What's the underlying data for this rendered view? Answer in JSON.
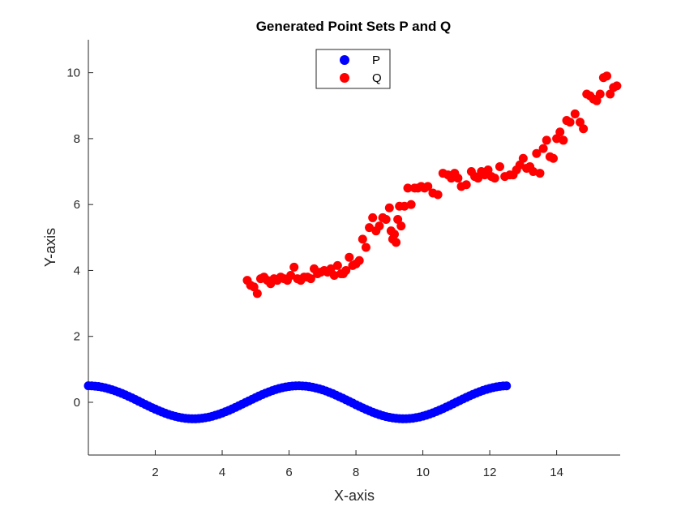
{
  "chart_data": {
    "type": "scatter",
    "title": "Generated Point Sets P and Q",
    "xlabel": "X-axis",
    "ylabel": "Y-axis",
    "xlim": [
      0,
      15.9
    ],
    "ylim": [
      -1.6,
      11
    ],
    "xticks": [
      2,
      4,
      6,
      8,
      10,
      12,
      14
    ],
    "yticks": [
      0,
      2,
      4,
      6,
      8,
      10
    ],
    "grid": false,
    "legend_position": "top-center",
    "series": [
      {
        "name": "P",
        "color": "#0000ff",
        "description": "y = 0.5*cos(x), x from 0 to 4*pi",
        "x": [
          0.0,
          0.1,
          0.2,
          0.3,
          0.4,
          0.5,
          0.6,
          0.7,
          0.8,
          0.9,
          1.0,
          1.1,
          1.2,
          1.3,
          1.4,
          1.5,
          1.6,
          1.7,
          1.8,
          1.9,
          2.0,
          2.1,
          2.2,
          2.3,
          2.4,
          2.5,
          2.6,
          2.7,
          2.8,
          2.9,
          3.0,
          3.1,
          3.2,
          3.3,
          3.4,
          3.5,
          3.6,
          3.7,
          3.8,
          3.9,
          4.0,
          4.1,
          4.2,
          4.3,
          4.4,
          4.5,
          4.6,
          4.7,
          4.8,
          4.9,
          5.0,
          5.1,
          5.2,
          5.3,
          5.4,
          5.5,
          5.6,
          5.7,
          5.8,
          5.9,
          6.0,
          6.1,
          6.2,
          6.3,
          6.4,
          6.5,
          6.6,
          6.7,
          6.8,
          6.9,
          7.0,
          7.1,
          7.2,
          7.3,
          7.4,
          7.5,
          7.6,
          7.7,
          7.8,
          7.9,
          8.0,
          8.1,
          8.2,
          8.3,
          8.4,
          8.5,
          8.6,
          8.7,
          8.8,
          8.9,
          9.0,
          9.1,
          9.2,
          9.3,
          9.4,
          9.5,
          9.6,
          9.7,
          9.8,
          9.9,
          10.0,
          10.1,
          10.2,
          10.3,
          10.4,
          10.5,
          10.6,
          10.7,
          10.8,
          10.9,
          11.0,
          11.1,
          11.2,
          11.3,
          11.4,
          11.5,
          11.6,
          11.7,
          11.8,
          11.9,
          12.0,
          12.1,
          12.2,
          12.3,
          12.4,
          12.5
        ],
        "y": [
          0.5,
          0.498,
          0.49,
          0.478,
          0.461,
          0.439,
          0.413,
          0.382,
          0.348,
          0.311,
          0.27,
          0.227,
          0.181,
          0.134,
          0.085,
          0.035,
          -0.015,
          -0.064,
          -0.114,
          -0.162,
          -0.208,
          -0.252,
          -0.294,
          -0.333,
          -0.369,
          -0.401,
          -0.428,
          -0.452,
          -0.471,
          -0.485,
          -0.495,
          -0.5,
          -0.5,
          -0.494,
          -0.484,
          -0.468,
          -0.448,
          -0.424,
          -0.395,
          -0.363,
          -0.327,
          -0.287,
          -0.245,
          -0.2,
          -0.153,
          -0.105,
          -0.056,
          -0.006,
          0.044,
          0.093,
          0.142,
          0.189,
          0.234,
          0.277,
          0.317,
          0.354,
          0.388,
          0.417,
          0.443,
          0.464,
          0.48,
          0.492,
          0.498,
          0.5,
          0.496,
          0.488,
          0.475,
          0.457,
          0.434,
          0.408,
          0.377,
          0.343,
          0.304,
          0.263,
          0.219,
          0.173,
          0.126,
          0.077,
          0.027,
          -0.023,
          -0.073,
          -0.122,
          -0.17,
          -0.215,
          -0.259,
          -0.301,
          -0.339,
          -0.374,
          -0.405,
          -0.433,
          -0.455,
          -0.474,
          -0.487,
          -0.496,
          -0.5,
          -0.499,
          -0.493,
          -0.483,
          -0.466,
          -0.446,
          -0.42,
          -0.391,
          -0.358,
          -0.32,
          -0.281,
          -0.238,
          -0.193,
          -0.146,
          -0.098,
          -0.048,
          0.002,
          0.052,
          0.101,
          0.149,
          0.196,
          0.241,
          0.283,
          0.323,
          0.36,
          0.392,
          0.422,
          0.447,
          0.467,
          0.483,
          0.494,
          0.499
        ]
      },
      {
        "name": "Q",
        "color": "#ff0000",
        "x": [
          4.75,
          4.85,
          4.95,
          5.05,
          5.15,
          5.25,
          5.35,
          5.45,
          5.55,
          5.65,
          5.75,
          5.85,
          5.95,
          6.05,
          6.15,
          6.25,
          6.35,
          6.45,
          6.55,
          6.65,
          6.75,
          6.85,
          6.95,
          7.05,
          7.15,
          7.25,
          7.35,
          7.45,
          7.55,
          7.62,
          7.7,
          7.8,
          7.9,
          8.0,
          8.1,
          8.2,
          8.3,
          8.4,
          8.5,
          8.6,
          8.7,
          8.8,
          8.9,
          9.0,
          9.05,
          9.1,
          9.15,
          9.2,
          9.25,
          9.3,
          9.35,
          9.45,
          9.55,
          9.65,
          9.75,
          9.85,
          9.95,
          10.05,
          10.15,
          10.3,
          10.45,
          10.6,
          10.75,
          10.85,
          10.95,
          11.05,
          11.15,
          11.3,
          11.45,
          11.55,
          11.65,
          11.75,
          11.85,
          11.95,
          12.05,
          12.15,
          12.3,
          12.45,
          12.6,
          12.7,
          12.8,
          12.9,
          13.0,
          13.1,
          13.2,
          13.3,
          13.4,
          13.5,
          13.6,
          13.7,
          13.8,
          13.9,
          14.0,
          14.1,
          14.2,
          14.3,
          14.4,
          14.55,
          14.7,
          14.8,
          14.9,
          15.0,
          15.1,
          15.2,
          15.3,
          15.4,
          15.5,
          15.6,
          15.7,
          15.8
        ],
        "y": [
          3.7,
          3.55,
          3.5,
          3.3,
          3.75,
          3.8,
          3.7,
          3.6,
          3.75,
          3.7,
          3.8,
          3.75,
          3.7,
          3.85,
          4.1,
          3.75,
          3.7,
          3.8,
          3.8,
          3.75,
          4.05,
          3.9,
          3.95,
          4.0,
          3.95,
          4.05,
          3.85,
          4.15,
          3.9,
          3.9,
          4.0,
          4.4,
          4.15,
          4.2,
          4.3,
          4.95,
          4.7,
          5.3,
          5.6,
          5.2,
          5.35,
          5.6,
          5.55,
          5.9,
          5.2,
          4.95,
          5.1,
          4.85,
          5.55,
          5.95,
          5.35,
          5.95,
          6.5,
          6.0,
          6.5,
          6.5,
          6.55,
          6.5,
          6.55,
          6.35,
          6.3,
          6.95,
          6.9,
          6.8,
          6.95,
          6.8,
          6.55,
          6.6,
          7.0,
          6.85,
          6.8,
          7.0,
          6.9,
          7.05,
          6.85,
          6.8,
          7.15,
          6.85,
          6.9,
          6.9,
          7.05,
          7.2,
          7.4,
          7.1,
          7.15,
          7.0,
          7.55,
          6.95,
          7.7,
          7.95,
          7.45,
          7.4,
          8.0,
          8.2,
          7.95,
          8.55,
          8.5,
          8.75,
          8.5,
          8.3,
          9.35,
          9.3,
          9.2,
          9.15,
          9.35,
          9.85,
          9.9,
          9.35,
          9.55,
          9.6
        ]
      }
    ]
  }
}
